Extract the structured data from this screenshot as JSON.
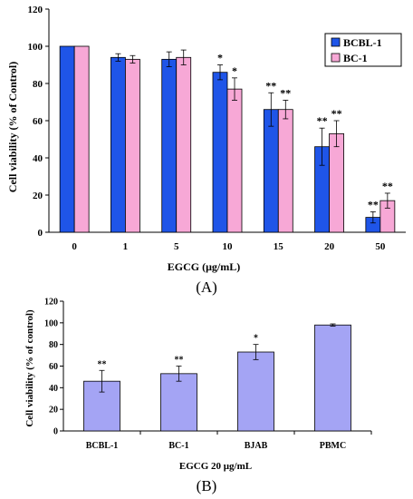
{
  "chart_data": [
    {
      "panel_label": "(A)",
      "type": "bar",
      "xlabel": "EGCG (μg/mL)",
      "ylabel": "Cell viability (% of Control)",
      "ylim": [
        0,
        120
      ],
      "yticks": [
        "0",
        "20",
        "40",
        "60",
        "80",
        "100",
        "120"
      ],
      "categories": [
        "0",
        "1",
        "5",
        "10",
        "15",
        "20",
        "50"
      ],
      "legend_position": "top-right",
      "grid": false,
      "series": [
        {
          "name": "BCBL-1",
          "color": "#1f55e8",
          "values": [
            100,
            94,
            93,
            86,
            66,
            46,
            8
          ],
          "errors": [
            0,
            2,
            4,
            4,
            9,
            10,
            3
          ],
          "significance": [
            "",
            "",
            "",
            "*",
            "**",
            "**",
            "**"
          ]
        },
        {
          "name": "BC-1",
          "color": "#f7a8d6",
          "values": [
            100,
            93,
            94,
            77,
            66,
            53,
            17
          ],
          "errors": [
            0,
            2,
            4,
            6,
            5,
            7,
            4
          ],
          "significance": [
            "",
            "",
            "",
            "*",
            "**",
            "**",
            "**"
          ]
        }
      ]
    },
    {
      "panel_label": "(B)",
      "type": "bar",
      "xlabel": "EGCG 20 μg/mL",
      "ylabel": "Cell viability (% of control)",
      "ylim": [
        0,
        120
      ],
      "yticks": [
        "0",
        "20",
        "40",
        "60",
        "80",
        "100",
        "120"
      ],
      "categories": [
        "BCBL-1",
        "BC-1",
        "BJAB",
        "PBMC"
      ],
      "grid": false,
      "series": [
        {
          "color": "#a4a4f4",
          "values": [
            46,
            53,
            73,
            98
          ],
          "errors": [
            10,
            7,
            7,
            1
          ],
          "significance": [
            "**",
            "**",
            "*",
            ""
          ]
        }
      ]
    }
  ]
}
